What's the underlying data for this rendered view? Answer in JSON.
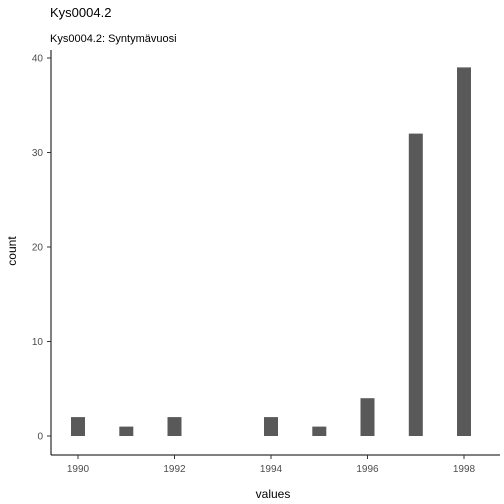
{
  "chart_data": {
    "type": "bar",
    "title": "Kys0004.2",
    "subtitle": "Kys0004.2: Syntymävuosi",
    "xlabel": "values",
    "ylabel": "count",
    "x": [
      1990,
      1991,
      1992,
      1994,
      1995,
      1996,
      1997,
      1998
    ],
    "values": [
      2,
      1,
      2,
      2,
      1,
      4,
      32,
      39
    ],
    "xlim": [
      1989.5,
      1998.5
    ],
    "ylim": [
      0,
      40
    ],
    "x_ticks": [
      1990,
      1992,
      1994,
      1996,
      1998
    ],
    "y_ticks": [
      0,
      10,
      20,
      30,
      40
    ],
    "grid": false,
    "colors": {
      "bar": "#595959"
    }
  }
}
